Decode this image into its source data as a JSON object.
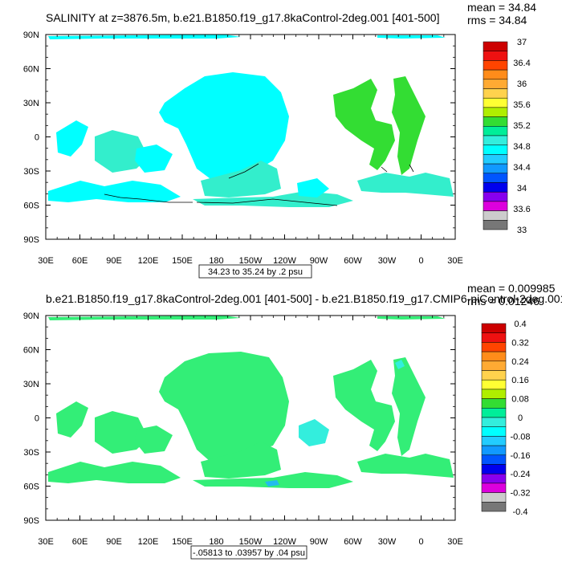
{
  "chart_data": [
    {
      "type": "heatmap",
      "title": "SALINITY at z=3876.5m, b.e21.B1850.f19_g17.8kaControl-2deg.001 [401-500]",
      "stats": [
        "mean = 34.84",
        "rms = 34.84"
      ],
      "range_label": "34.23 to 35.24 by .2 psu",
      "x_tick_labels": [
        "30E",
        "60E",
        "90E",
        "120E",
        "150E",
        "180",
        "150W",
        "120W",
        "90W",
        "60W",
        "30W",
        "0",
        "30E"
      ],
      "y_tick_labels": [
        "90N",
        "60N",
        "30N",
        "0",
        "30S",
        "60S",
        "90S"
      ],
      "colorbar_labels": [
        "37",
        "36.4",
        "36",
        "35.6",
        "35.2",
        "34.8",
        "34.4",
        "34",
        "33.6",
        "33"
      ],
      "colorbar_colors": [
        "#cc0000",
        "#ee1111",
        "#ff4400",
        "#ff8c1a",
        "#ffaa33",
        "#ffd24d",
        "#ffff33",
        "#b0ee00",
        "#33dd33",
        "#00ee99",
        "#33eedd",
        "#00ffff",
        "#22ccff",
        "#1199ff",
        "#0055ff",
        "#0000ee",
        "#8800ee",
        "#dd00dd",
        "#cccccc",
        "#777777"
      ],
      "field_colors": [
        "#00ffff",
        "#33eecc",
        "#33dd33"
      ]
    },
    {
      "type": "heatmap",
      "title": "b.e21.B1850.f19_g17.8kaControl-2deg.001 [401-500] - b.e21.B1850.f19_g17.CMIP6-piControl-2deg.001",
      "stats": [
        "mean = 0.009985",
        "rms = 0.01246"
      ],
      "range_label": "-.05813 to .03957 by .04 psu",
      "x_tick_labels": [
        "30E",
        "60E",
        "90E",
        "120E",
        "150E",
        "180",
        "150W",
        "120W",
        "90W",
        "60W",
        "30W",
        "0",
        "30E"
      ],
      "y_tick_labels": [
        "90N",
        "60N",
        "30N",
        "0",
        "30S",
        "60S",
        "90S"
      ],
      "colorbar_labels": [
        "0.4",
        "0.32",
        "0.24",
        "0.16",
        "0.08",
        "0",
        "-0.08",
        "-0.16",
        "-0.24",
        "-0.32",
        "-0.4"
      ],
      "colorbar_colors": [
        "#cc0000",
        "#ee1111",
        "#ff4400",
        "#ff8c1a",
        "#ffaa33",
        "#ffd24d",
        "#ffff33",
        "#b0ee00",
        "#33dd33",
        "#00ee99",
        "#33eedd",
        "#00ffff",
        "#22ccff",
        "#1199ff",
        "#0055ff",
        "#0000ee",
        "#8800ee",
        "#dd00dd",
        "#cccccc",
        "#777777"
      ],
      "field_colors": [
        "#33ee77",
        "#33eedd",
        "#22bbee"
      ]
    }
  ]
}
